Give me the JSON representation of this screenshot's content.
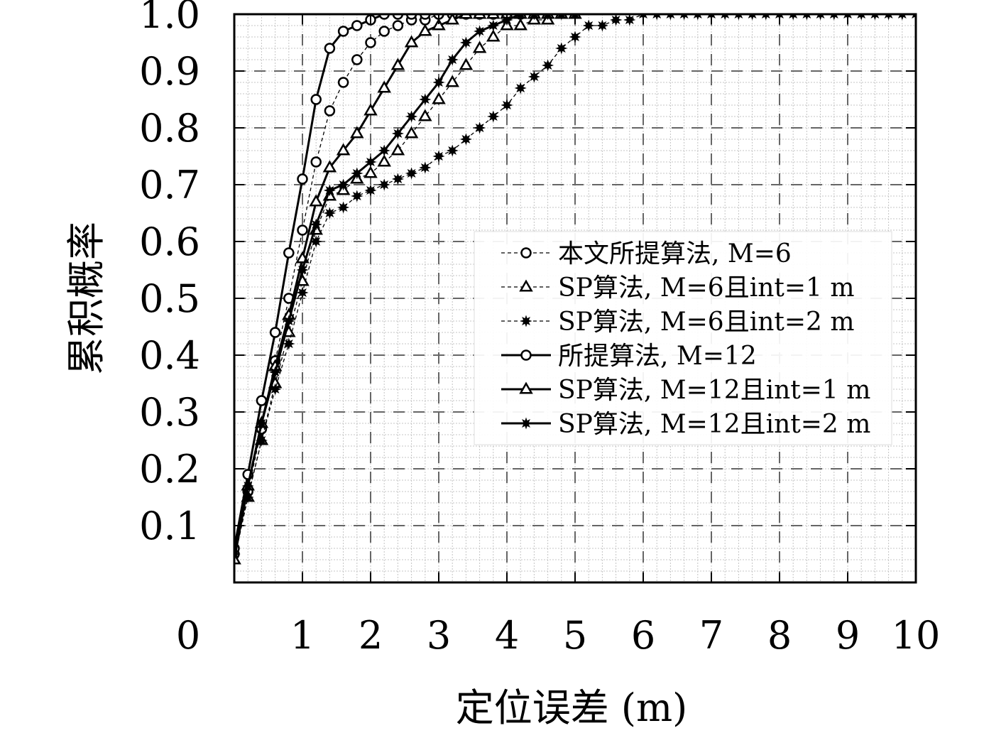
{
  "chart_data": {
    "type": "line",
    "xlabel": "定位误差 (m)",
    "ylabel": "累积概率",
    "xlim": [
      0,
      10
    ],
    "ylim": [
      0,
      1.0
    ],
    "x_ticks": [
      "0",
      "1",
      "2",
      "3",
      "4",
      "5",
      "6",
      "7",
      "8",
      "9",
      "10"
    ],
    "y_ticks": [
      "0.1",
      "0.2",
      "0.3",
      "0.4",
      "0.5",
      "0.6",
      "0.7",
      "0.8",
      "0.9",
      "1.0"
    ],
    "grid": "major dashed, minor dotted",
    "legend_position": "center-right",
    "series": [
      {
        "name": "本文所提算法, M=6",
        "line_style": "dashed",
        "marker": "circle",
        "x": [
          0,
          0.2,
          0.4,
          0.6,
          0.8,
          1.0,
          1.2,
          1.4,
          1.6,
          1.8,
          2.0,
          2.2,
          2.4,
          2.6,
          2.8,
          3.0
        ],
        "y": [
          0.05,
          0.16,
          0.27,
          0.39,
          0.5,
          0.62,
          0.74,
          0.83,
          0.88,
          0.92,
          0.95,
          0.97,
          0.98,
          0.99,
          0.99,
          1.0
        ]
      },
      {
        "name": "SP算法, M=6且int=1 m",
        "line_style": "dashed",
        "marker": "triangle",
        "x": [
          0,
          0.2,
          0.4,
          0.6,
          0.8,
          1.0,
          1.2,
          1.4,
          1.6,
          1.8,
          2.0,
          2.2,
          2.4,
          2.6,
          2.8,
          3.0,
          3.2,
          3.4,
          3.6,
          3.8,
          4.0,
          4.2,
          4.4,
          4.6,
          4.8,
          5.0
        ],
        "y": [
          0.04,
          0.15,
          0.25,
          0.35,
          0.44,
          0.53,
          0.62,
          0.68,
          0.69,
          0.71,
          0.72,
          0.74,
          0.76,
          0.79,
          0.82,
          0.85,
          0.88,
          0.91,
          0.94,
          0.96,
          0.98,
          0.98,
          0.99,
          0.99,
          1.0,
          1.0
        ]
      },
      {
        "name": "SP算法, M=6且int=2 m",
        "line_style": "dashed",
        "marker": "star",
        "x": [
          0,
          0.2,
          0.4,
          0.6,
          0.8,
          1.0,
          1.2,
          1.4,
          1.6,
          1.8,
          2.0,
          2.2,
          2.4,
          2.6,
          2.8,
          3.0,
          3.2,
          3.4,
          3.6,
          3.8,
          4.0,
          4.2,
          4.4,
          4.6,
          4.8,
          5.0,
          5.2,
          5.4,
          5.6,
          5.8,
          6.0,
          6.2,
          6.4,
          6.6,
          6.8,
          7.0,
          7.2,
          7.4,
          7.6,
          7.8,
          8.0,
          8.2,
          8.4,
          8.6,
          8.8,
          9.0,
          9.2,
          9.4,
          9.6,
          9.8,
          10.0
        ],
        "y": [
          0.05,
          0.15,
          0.25,
          0.34,
          0.42,
          0.51,
          0.6,
          0.65,
          0.66,
          0.68,
          0.69,
          0.7,
          0.71,
          0.72,
          0.73,
          0.75,
          0.76,
          0.78,
          0.8,
          0.82,
          0.84,
          0.87,
          0.89,
          0.91,
          0.94,
          0.96,
          0.98,
          0.98,
          0.99,
          0.99,
          1.0,
          1.0,
          1.0,
          1.0,
          1.0,
          1.0,
          1.0,
          1.0,
          1.0,
          1.0,
          1.0,
          1.0,
          1.0,
          1.0,
          1.0,
          1.0,
          1.0,
          1.0,
          1.0,
          1.0,
          1.0
        ]
      },
      {
        "name": "所提算法, M=12",
        "line_style": "solid",
        "marker": "circle",
        "x": [
          0,
          0.2,
          0.4,
          0.6,
          0.8,
          1.0,
          1.2,
          1.4,
          1.6,
          1.8,
          2.0,
          2.2,
          2.4,
          2.6,
          2.8,
          3.0,
          3.2,
          3.4,
          3.6,
          3.8,
          4.0,
          4.2
        ],
        "y": [
          0.06,
          0.19,
          0.32,
          0.44,
          0.58,
          0.71,
          0.85,
          0.94,
          0.97,
          0.98,
          0.99,
          1.0,
          1.0,
          1.0,
          1.0,
          1.0,
          1.0,
          1.0,
          1.0,
          1.0,
          1.0,
          1.0
        ]
      },
      {
        "name": "SP算法, M=12且int=1 m",
        "line_style": "solid",
        "marker": "triangle",
        "x": [
          0,
          0.2,
          0.4,
          0.6,
          0.8,
          1.0,
          1.2,
          1.4,
          1.6,
          1.8,
          2.0,
          2.2,
          2.4,
          2.6,
          2.8,
          3.0,
          3.2,
          3.4,
          3.6,
          3.8,
          4.0,
          4.2,
          4.4,
          4.6,
          4.8
        ],
        "y": [
          0.04,
          0.17,
          0.28,
          0.38,
          0.47,
          0.57,
          0.67,
          0.73,
          0.76,
          0.79,
          0.83,
          0.87,
          0.91,
          0.95,
          0.97,
          0.98,
          0.99,
          1.0,
          1.0,
          1.0,
          1.0,
          1.0,
          1.0,
          1.0,
          1.0
        ]
      },
      {
        "name": "SP算法, M=12且int=2 m",
        "line_style": "solid",
        "marker": "star",
        "x": [
          0,
          0.2,
          0.4,
          0.6,
          0.8,
          1.0,
          1.2,
          1.4,
          1.6,
          1.8,
          2.0,
          2.2,
          2.4,
          2.6,
          2.8,
          3.0,
          3.2,
          3.4,
          3.6,
          3.8,
          4.0,
          4.2,
          4.4,
          4.6,
          4.8,
          5.0
        ],
        "y": [
          0.05,
          0.17,
          0.28,
          0.37,
          0.46,
          0.55,
          0.63,
          0.69,
          0.7,
          0.72,
          0.74,
          0.76,
          0.79,
          0.82,
          0.85,
          0.88,
          0.92,
          0.95,
          0.97,
          0.98,
          0.99,
          1.0,
          1.0,
          1.0,
          1.0,
          1.0
        ]
      }
    ]
  }
}
